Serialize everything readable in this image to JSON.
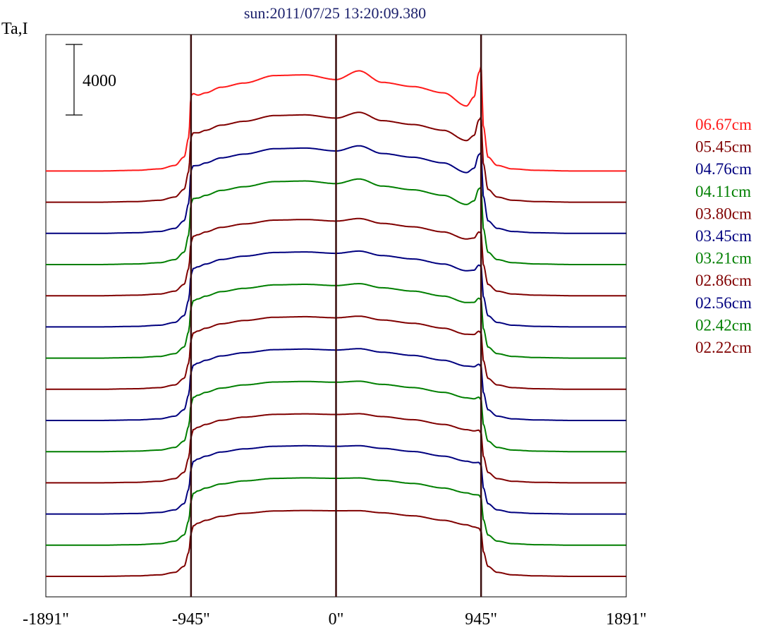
{
  "chart_data": {
    "type": "line",
    "title": "sun:2011/07/25 13:20:09.380",
    "ylabel": "Ta,I",
    "scale_bar": {
      "label": "4000",
      "value": 4000
    },
    "x_ticks": [
      "-1891\"",
      "-945\"",
      "0\"",
      "945\"",
      "1891\""
    ],
    "x_tick_values": [
      -1891,
      -945,
      0,
      945,
      1891
    ],
    "xlim": [
      -1891,
      1891
    ],
    "vertical_markers": [
      -945,
      0,
      945
    ],
    "grid": false,
    "legend_position": "right",
    "series": [
      {
        "name": "06.67cm",
        "color": "#ff1a1a",
        "offset": 0,
        "peak_scale": 1.35
      },
      {
        "name": "05.45cm",
        "color": "#800000",
        "offset": 1,
        "peak_scale": 1.0
      },
      {
        "name": "04.76cm",
        "color": "#00007f",
        "offset": 2,
        "peak_scale": 0.92
      },
      {
        "name": "04.11cm",
        "color": "#007f00",
        "offset": 3,
        "peak_scale": 0.85
      },
      {
        "name": "03.80cm",
        "color": "#800000",
        "offset": 4,
        "peak_scale": 0.55
      },
      {
        "name": "03.45cm",
        "color": "#00007f",
        "offset": 5,
        "peak_scale": 0.5
      },
      {
        "name": "03.21cm",
        "color": "#007f00",
        "offset": 6,
        "peak_scale": 0.45
      },
      {
        "name": "02.86cm",
        "color": "#800000",
        "offset": 7,
        "peak_scale": 0.4
      },
      {
        "name": "02.56cm",
        "color": "#00007f",
        "offset": 8,
        "peak_scale": 0.35
      },
      {
        "name": "02.42cm",
        "color": "#007f00",
        "offset": 9,
        "peak_scale": 0.3
      },
      {
        "name": "02.22cm",
        "color": "#800000",
        "offset": 10,
        "peak_scale": 0.25
      },
      {
        "name": "",
        "color": "#00007f",
        "offset": 11,
        "peak_scale": 0.22
      },
      {
        "name": "",
        "color": "#007f00",
        "offset": 12,
        "peak_scale": 0.18
      },
      {
        "name": "",
        "color": "#800000",
        "offset": 13,
        "peak_scale": 0.12
      }
    ],
    "x_knots": [
      -1891,
      -1550,
      -1300,
      -1150,
      -1050,
      -990,
      -960,
      -945,
      -930,
      -900,
      -850,
      -750,
      -600,
      -400,
      -200,
      0,
      150,
      300,
      500,
      700,
      850,
      900,
      930,
      945,
      960,
      990,
      1050,
      1150,
      1300,
      1550,
      1891
    ],
    "base_profile": [
      0,
      0,
      0.05,
      0.15,
      0.4,
      1.0,
      2.4,
      4.2,
      5.0,
      5.3,
      5.6,
      6.0,
      6.3,
      6.5,
      6.55,
      6.55,
      6.5,
      6.35,
      6.05,
      5.6,
      5.2,
      4.9,
      4.6,
      4.2,
      2.4,
      1.0,
      0.4,
      0.15,
      0.05,
      0,
      0
    ],
    "peak_profile": [
      0,
      0,
      0,
      0,
      0,
      0,
      0,
      0.9,
      0.4,
      0.1,
      0,
      0,
      0,
      0.25,
      0.25,
      0,
      0.5,
      0,
      0,
      0,
      -0.4,
      0.3,
      1.8,
      2.4,
      0.6,
      0,
      0,
      0,
      0,
      0,
      0
    ]
  }
}
